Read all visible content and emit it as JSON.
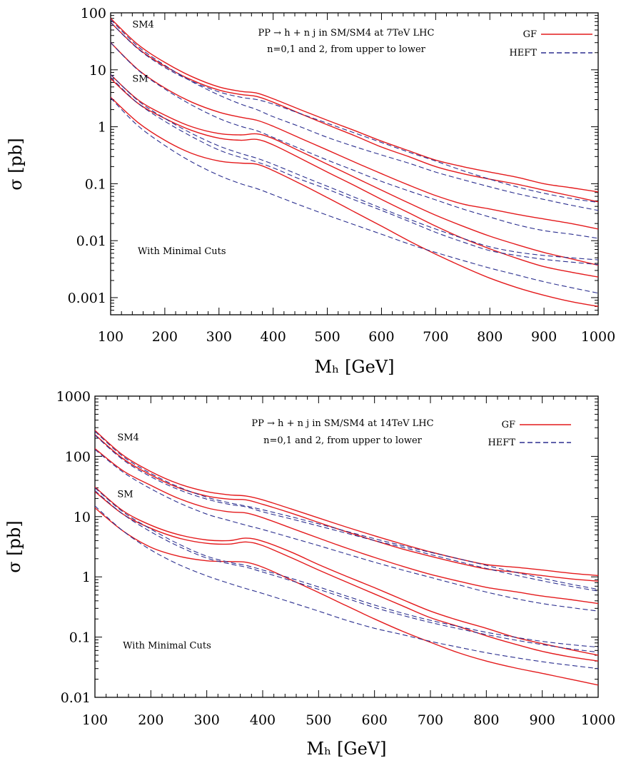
{
  "chart_data": [
    {
      "type": "line",
      "title": "PP → h + n j in SM/SM4 at 7TeV LHC",
      "subtitle": "n=0,1 and 2, from upper to lower",
      "xlabel": "M_h [GeV]",
      "ylabel": "σ [pb]",
      "xlim": [
        100,
        1000
      ],
      "ylim": [
        0.0005,
        100
      ],
      "yscale": "log",
      "x_ticks": [
        100,
        200,
        300,
        400,
        500,
        600,
        700,
        800,
        900,
        1000
      ],
      "x_tick_labels": [
        "100",
        "200",
        "300",
        "400",
        "500",
        "600",
        "700",
        "800",
        "900",
        "1000"
      ],
      "y_ticks": [
        0.001,
        0.01,
        0.1,
        1,
        10,
        100
      ],
      "y_tick_labels": [
        "0.001",
        "0.01",
        "0.1",
        "1",
        "10",
        "100"
      ],
      "legend": {
        "position": "top-right",
        "entries": [
          {
            "label": "GF",
            "color": "#e41a1c",
            "style": "solid"
          },
          {
            "label": "HEFT",
            "color": "#2b2f8f",
            "style": "dashed"
          }
        ]
      },
      "annotations": [
        {
          "text": "SM4",
          "x": 140,
          "y": 55
        },
        {
          "text": "SM",
          "x": 140,
          "y": 6.2
        },
        {
          "text": "With Minimal Cuts",
          "x": 150,
          "y": 0.0058
        }
      ],
      "x": [
        100,
        150,
        200,
        250,
        300,
        340,
        370,
        400,
        450,
        500,
        550,
        600,
        650,
        700,
        750,
        800,
        850,
        900,
        950,
        1000
      ],
      "series": [
        {
          "color": "#e41a1c",
          "style": "solid",
          "values": [
            80,
            28,
            13.5,
            7.6,
            5,
            4.2,
            3.9,
            3.1,
            2,
            1.3,
            0.86,
            0.56,
            0.38,
            0.26,
            0.2,
            0.16,
            0.13,
            0.1,
            0.085,
            0.072
          ]
        },
        {
          "color": "#e41a1c",
          "style": "solid",
          "values": [
            68,
            24,
            11.6,
            6.6,
            4.4,
            3.7,
            3.4,
            2.7,
            1.7,
            1.08,
            0.7,
            0.44,
            0.3,
            0.2,
            0.15,
            0.12,
            0.098,
            0.077,
            0.061,
            0.048
          ]
        },
        {
          "color": "#e41a1c",
          "style": "solid",
          "values": [
            30,
            10.2,
            4.8,
            2.7,
            1.8,
            1.47,
            1.3,
            1.02,
            0.63,
            0.39,
            0.24,
            0.15,
            0.095,
            0.062,
            0.044,
            0.036,
            0.029,
            0.024,
            0.02,
            0.016
          ]
        },
        {
          "color": "#e41a1c",
          "style": "solid",
          "values": [
            8.2,
            3,
            1.6,
            1,
            0.76,
            0.72,
            0.75,
            0.62,
            0.37,
            0.22,
            0.13,
            0.077,
            0.046,
            0.028,
            0.018,
            0.012,
            0.0085,
            0.0062,
            0.0048,
            0.0037
          ]
        },
        {
          "color": "#e41a1c",
          "style": "solid",
          "values": [
            7,
            2.6,
            1.4,
            0.86,
            0.63,
            0.58,
            0.6,
            0.48,
            0.28,
            0.16,
            0.093,
            0.053,
            0.031,
            0.018,
            0.011,
            0.0072,
            0.0049,
            0.0035,
            0.0028,
            0.0023
          ]
        },
        {
          "color": "#e41a1c",
          "style": "solid",
          "values": [
            3.3,
            1.2,
            0.58,
            0.34,
            0.25,
            0.23,
            0.22,
            0.17,
            0.1,
            0.057,
            0.032,
            0.018,
            0.01,
            0.0058,
            0.0035,
            0.0022,
            0.0015,
            0.0011,
            0.00085,
            0.0007
          ]
        },
        {
          "color": "#2b2f8f",
          "style": "dashed",
          "values": [
            76,
            26,
            12,
            6.2,
            3.6,
            2.5,
            2,
            1.5,
            1,
            0.65,
            0.45,
            0.32,
            0.23,
            0.16,
            0.118,
            0.088,
            0.067,
            0.053,
            0.042,
            0.034
          ]
        },
        {
          "color": "#2b2f8f",
          "style": "dashed",
          "values": [
            68,
            23.5,
            11,
            6.3,
            4.1,
            3.3,
            3,
            2.5,
            1.7,
            1.15,
            0.78,
            0.53,
            0.36,
            0.25,
            0.17,
            0.12,
            0.088,
            0.068,
            0.055,
            0.047
          ]
        },
        {
          "color": "#2b2f8f",
          "style": "dashed",
          "values": [
            30,
            10,
            4.6,
            2.4,
            1.4,
            1.02,
            0.85,
            0.65,
            0.41,
            0.26,
            0.17,
            0.11,
            0.075,
            0.052,
            0.036,
            0.026,
            0.019,
            0.015,
            0.013,
            0.011
          ]
        },
        {
          "color": "#2b2f8f",
          "style": "dashed",
          "values": [
            8.3,
            2.9,
            1.4,
            0.76,
            0.46,
            0.34,
            0.28,
            0.22,
            0.14,
            0.09,
            0.058,
            0.037,
            0.024,
            0.016,
            0.011,
            0.0078,
            0.0063,
            0.0055,
            0.005,
            0.0046
          ]
        },
        {
          "color": "#2b2f8f",
          "style": "dashed",
          "values": [
            7.4,
            2.6,
            1.25,
            0.67,
            0.39,
            0.29,
            0.24,
            0.19,
            0.12,
            0.08,
            0.052,
            0.034,
            0.022,
            0.014,
            0.0095,
            0.0067,
            0.0055,
            0.0047,
            0.0042,
            0.0038
          ]
        },
        {
          "color": "#2b2f8f",
          "style": "dashed",
          "values": [
            3.2,
            1.05,
            0.47,
            0.24,
            0.14,
            0.1,
            0.082,
            0.064,
            0.042,
            0.028,
            0.019,
            0.013,
            0.0088,
            0.0062,
            0.0045,
            0.0033,
            0.0025,
            0.0019,
            0.0015,
            0.0012
          ]
        }
      ]
    },
    {
      "type": "line",
      "title": "PP → h + n j in SM/SM4 at 14TeV LHC",
      "subtitle": "n=0,1 and 2, from upper to lower",
      "xlabel": "M_h [GeV]",
      "ylabel": "σ [pb]",
      "xlim": [
        100,
        1000
      ],
      "ylim": [
        0.01,
        1000
      ],
      "yscale": "log",
      "x_ticks": [
        100,
        200,
        300,
        400,
        500,
        600,
        700,
        800,
        900,
        1000
      ],
      "x_tick_labels": [
        "100",
        "200",
        "300",
        "400",
        "500",
        "600",
        "700",
        "800",
        "900",
        "1000"
      ],
      "y_ticks": [
        0.01,
        0.1,
        1,
        10,
        100,
        1000
      ],
      "y_tick_labels": [
        "0.01",
        "0.1",
        "1",
        "10",
        "100",
        "1000"
      ],
      "legend": {
        "position": "top-right",
        "entries": [
          {
            "label": "GF",
            "color": "#e41a1c",
            "style": "solid"
          },
          {
            "label": "HEFT",
            "color": "#2b2f8f",
            "style": "dashed"
          }
        ]
      },
      "annotations": [
        {
          "text": "SM4",
          "x": 140,
          "y": 185
        },
        {
          "text": "SM",
          "x": 140,
          "y": 21
        },
        {
          "text": "With Minimal Cuts",
          "x": 150,
          "y": 0.065
        }
      ],
      "x": [
        100,
        150,
        200,
        250,
        300,
        340,
        370,
        400,
        450,
        500,
        550,
        600,
        650,
        700,
        750,
        800,
        850,
        900,
        950,
        1000
      ],
      "series": [
        {
          "color": "#e41a1c",
          "style": "solid",
          "values": [
            270,
            105,
            56,
            35,
            26,
            23,
            22,
            19,
            13.5,
            9.5,
            6.7,
            4.8,
            3.5,
            2.6,
            2,
            1.6,
            1.45,
            1.3,
            1.15,
            1.05
          ]
        },
        {
          "color": "#e41a1c",
          "style": "solid",
          "values": [
            230,
            92,
            49,
            30,
            22,
            19.5,
            19,
            16,
            11.5,
            8,
            5.6,
            4,
            2.9,
            2.2,
            1.7,
            1.35,
            1.2,
            1.05,
            0.93,
            0.85
          ]
        },
        {
          "color": "#e41a1c",
          "style": "solid",
          "values": [
            135,
            58,
            33,
            20,
            14,
            12,
            11.5,
            9.6,
            6.5,
            4.4,
            3,
            2.1,
            1.5,
            1.1,
            0.85,
            0.67,
            0.57,
            0.48,
            0.42,
            0.36
          ]
        },
        {
          "color": "#e41a1c",
          "style": "solid",
          "values": [
            31,
            12.5,
            7.2,
            5,
            4.1,
            4,
            4.4,
            3.9,
            2.6,
            1.6,
            1.02,
            0.66,
            0.42,
            0.27,
            0.19,
            0.14,
            0.1,
            0.078,
            0.062,
            0.05
          ]
        },
        {
          "color": "#e41a1c",
          "style": "solid",
          "values": [
            26,
            11,
            6.4,
            4.4,
            3.6,
            3.5,
            3.8,
            3.3,
            2.1,
            1.3,
            0.82,
            0.52,
            0.33,
            0.21,
            0.15,
            0.105,
            0.077,
            0.058,
            0.047,
            0.04
          ]
        },
        {
          "color": "#e41a1c",
          "style": "solid",
          "values": [
            14,
            5.8,
            3.1,
            2.2,
            1.85,
            1.8,
            1.75,
            1.45,
            0.9,
            0.55,
            0.33,
            0.2,
            0.125,
            0.082,
            0.055,
            0.04,
            0.031,
            0.025,
            0.02,
            0.016
          ]
        },
        {
          "color": "#2b2f8f",
          "style": "dashed",
          "values": [
            260,
            100,
            52,
            31,
            21,
            17,
            15,
            13,
            10,
            7.6,
            5.7,
            4.3,
            3.3,
            2.55,
            2,
            1.55,
            1.2,
            0.95,
            0.76,
            0.62
          ]
        },
        {
          "color": "#2b2f8f",
          "style": "dashed",
          "values": [
            225,
            88,
            46,
            28,
            19.5,
            16,
            14.5,
            12,
            9.2,
            7,
            5.3,
            4,
            3.1,
            2.35,
            1.8,
            1.38,
            1.08,
            0.86,
            0.7,
            0.58
          ]
        },
        {
          "color": "#2b2f8f",
          "style": "dashed",
          "values": [
            130,
            55,
            29,
            17,
            11,
            8.6,
            7.2,
            6.1,
            4.5,
            3.3,
            2.4,
            1.75,
            1.3,
            0.98,
            0.74,
            0.56,
            0.44,
            0.36,
            0.31,
            0.27
          ]
        },
        {
          "color": "#2b2f8f",
          "style": "dashed",
          "values": [
            30,
            12,
            6.2,
            3.5,
            2.2,
            1.75,
            1.55,
            1.3,
            0.95,
            0.68,
            0.48,
            0.34,
            0.25,
            0.19,
            0.15,
            0.12,
            0.1,
            0.085,
            0.075,
            0.068
          ]
        },
        {
          "color": "#2b2f8f",
          "style": "dashed",
          "values": [
            27,
            11,
            5.6,
            3.2,
            2.05,
            1.65,
            1.45,
            1.2,
            0.87,
            0.62,
            0.44,
            0.31,
            0.23,
            0.175,
            0.138,
            0.11,
            0.09,
            0.075,
            0.064,
            0.056
          ]
        },
        {
          "color": "#2b2f8f",
          "style": "dashed",
          "values": [
            15,
            5.8,
            2.8,
            1.6,
            1.04,
            0.78,
            0.64,
            0.53,
            0.38,
            0.27,
            0.19,
            0.14,
            0.11,
            0.085,
            0.068,
            0.055,
            0.046,
            0.039,
            0.034,
            0.03
          ]
        }
      ]
    }
  ]
}
